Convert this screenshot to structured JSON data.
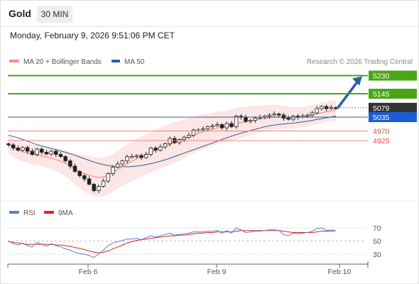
{
  "header": {
    "instrument": "Gold",
    "timeframe": "30 MIN",
    "timestamp": "Monday, February 9, 2026 9:51:06 PM CET"
  },
  "chart_data": [
    {
      "type": "candlestick",
      "legend": [
        {
          "label": "MA 20 + Bollinger Bands",
          "color": "#f2908e"
        },
        {
          "label": "MA 50",
          "color": "#2e5c9b"
        }
      ],
      "credit": "Research © 2026 Trading Central",
      "last_price": 5079,
      "levels": [
        {
          "value": 5230,
          "label": "5230",
          "kind": "resistance",
          "color": "#4aa617",
          "target": true
        },
        {
          "value": 5145,
          "label": "5145",
          "kind": "resistance",
          "color": "#4aa617"
        },
        {
          "value": 5079,
          "label": "5079",
          "kind": "last",
          "color": "#333333"
        },
        {
          "value": 5035,
          "label": "5035",
          "kind": "pivot",
          "color": "#1c5cd6"
        },
        {
          "value": 4970,
          "label": "4970",
          "kind": "support",
          "color": "#e64a4a"
        },
        {
          "value": 4925,
          "label": "4925",
          "kind": "support",
          "color": "#e64a4a"
        }
      ],
      "x_tick_labels": [
        "Feb 6",
        "Feb 9",
        "Feb 10"
      ],
      "close_path": [
        4905,
        4890,
        4880,
        4892,
        4875,
        4860,
        4885,
        4870,
        4862,
        4875,
        4860,
        4850,
        4830,
        4805,
        4780,
        4760,
        4745,
        4720,
        4690,
        4710,
        4735,
        4770,
        4800,
        4815,
        4830,
        4850,
        4850,
        4855,
        4845,
        4860,
        4890,
        4880,
        4895,
        4910,
        4935,
        4915,
        4930,
        4940,
        4950,
        4975,
        4975,
        4980,
        4990,
        4995,
        5000,
        4985,
        5005,
        4990,
        5040,
        5035,
        5015,
        5020,
        5030,
        5035,
        5040,
        5045,
        5050,
        5045,
        5030,
        5025,
        5040,
        5035,
        5040,
        5045,
        5055,
        5075,
        5085,
        5075,
        5080,
        5079
      ],
      "ma20": [
        4905,
        4892,
        4880,
        4872,
        4866,
        4860,
        4856,
        4852,
        4848,
        4842,
        4836,
        4828,
        4818,
        4806,
        4792,
        4780,
        4770,
        4762,
        4756,
        4752,
        4754,
        4762,
        4774,
        4788,
        4802,
        4816,
        4828,
        4840,
        4850,
        4860,
        4870,
        4880,
        4890,
        4898,
        4908,
        4916,
        4924,
        4932,
        4942,
        4950,
        4958,
        4966,
        4972,
        4978,
        4984,
        4988,
        4994,
        4998,
        5004,
        5010,
        5014,
        5018,
        5022,
        5026,
        5030,
        5032,
        5036,
        5036,
        5034,
        5032,
        5032,
        5034,
        5036,
        5040,
        5044,
        5050,
        5056,
        5060,
        5064,
        5068
      ],
      "bollinger_upper": [
        4950,
        4935,
        4925,
        4918,
        4912,
        4908,
        4904,
        4900,
        4898,
        4895,
        4890,
        4886,
        4880,
        4872,
        4865,
        4860,
        4855,
        4852,
        4848,
        4845,
        4846,
        4852,
        4862,
        4876,
        4892,
        4908,
        4922,
        4935,
        4945,
        4955,
        4965,
        4975,
        4985,
        4995,
        5005,
        5012,
        5018,
        5024,
        5030,
        5036,
        5042,
        5048,
        5052,
        5056,
        5060,
        5062,
        5068,
        5072,
        5078,
        5082,
        5084,
        5086,
        5088,
        5090,
        5092,
        5092,
        5094,
        5092,
        5088,
        5084,
        5082,
        5082,
        5084,
        5088,
        5092,
        5098,
        5104,
        5108,
        5112,
        5116
      ],
      "bollinger_lower": [
        4860,
        4848,
        4836,
        4826,
        4820,
        4812,
        4808,
        4804,
        4798,
        4790,
        4782,
        4770,
        4756,
        4740,
        4720,
        4700,
        4685,
        4672,
        4664,
        4660,
        4662,
        4672,
        4686,
        4700,
        4712,
        4724,
        4734,
        4745,
        4755,
        4765,
        4775,
        4785,
        4795,
        4802,
        4810,
        4820,
        4830,
        4840,
        4854,
        4864,
        4874,
        4884,
        4892,
        4900,
        4908,
        4914,
        4920,
        4924,
        4930,
        4938,
        4944,
        4950,
        4956,
        4962,
        4968,
        4972,
        4978,
        4980,
        4980,
        4980,
        4982,
        4986,
        4988,
        4992,
        4996,
        5002,
        5008,
        5012,
        5016,
        5020
      ],
      "ma50": [
        4950,
        4944,
        4938,
        4930,
        4922,
        4914,
        4906,
        4900,
        4894,
        4888,
        4882,
        4876,
        4870,
        4863,
        4856,
        4848,
        4840,
        4832,
        4824,
        4818,
        4812,
        4808,
        4805,
        4803,
        4802,
        4802,
        4803,
        4805,
        4808,
        4812,
        4817,
        4822,
        4828,
        4835,
        4842,
        4850,
        4858,
        4866,
        4874,
        4882,
        4890,
        4898,
        4906,
        4914,
        4922,
        4930,
        4938,
        4946,
        4953,
        4960,
        4966,
        4972,
        4978,
        4984,
        4990,
        4994,
        4998,
        5001,
        5003,
        5005,
        5007,
        5010,
        5013,
        5016,
        5020,
        5024,
        5028,
        5032,
        5036,
        5040
      ]
    },
    {
      "type": "line",
      "legend": [
        {
          "label": "RSI",
          "color": "#4f7fdb"
        },
        {
          "label": "9MA",
          "color": "#e02020"
        }
      ],
      "y_ticks": [
        70,
        50,
        30
      ],
      "ylim": [
        20,
        80
      ],
      "rsi": [
        50,
        46,
        44,
        47,
        43,
        41,
        48,
        45,
        42,
        46,
        43,
        41,
        38,
        36,
        33,
        31,
        30,
        28,
        25,
        30,
        36,
        43,
        47,
        49,
        51,
        53,
        53,
        54,
        52,
        55,
        58,
        56,
        58,
        60,
        62,
        59,
        60,
        61,
        62,
        64,
        64,
        64,
        65,
        65,
        66,
        62,
        66,
        62,
        70,
        67,
        63,
        64,
        65,
        65,
        66,
        67,
        67,
        66,
        60,
        58,
        62,
        61,
        62,
        63,
        65,
        69,
        70,
        66,
        67,
        66
      ],
      "rsi_ma9": [
        49,
        48,
        47,
        46,
        45,
        45,
        45,
        45,
        45,
        45,
        44,
        44,
        43,
        42,
        40,
        39,
        37,
        35,
        33,
        32,
        33,
        35,
        38,
        41,
        44,
        47,
        49,
        51,
        52,
        53,
        54,
        55,
        56,
        57,
        58,
        58,
        59,
        59,
        60,
        61,
        62,
        62,
        63,
        63,
        64,
        64,
        64,
        64,
        65,
        66,
        66,
        66,
        66,
        66,
        66,
        66,
        66,
        66,
        65,
        64,
        63,
        63,
        63,
        63,
        63,
        64,
        65,
        65,
        65,
        66
      ]
    }
  ]
}
